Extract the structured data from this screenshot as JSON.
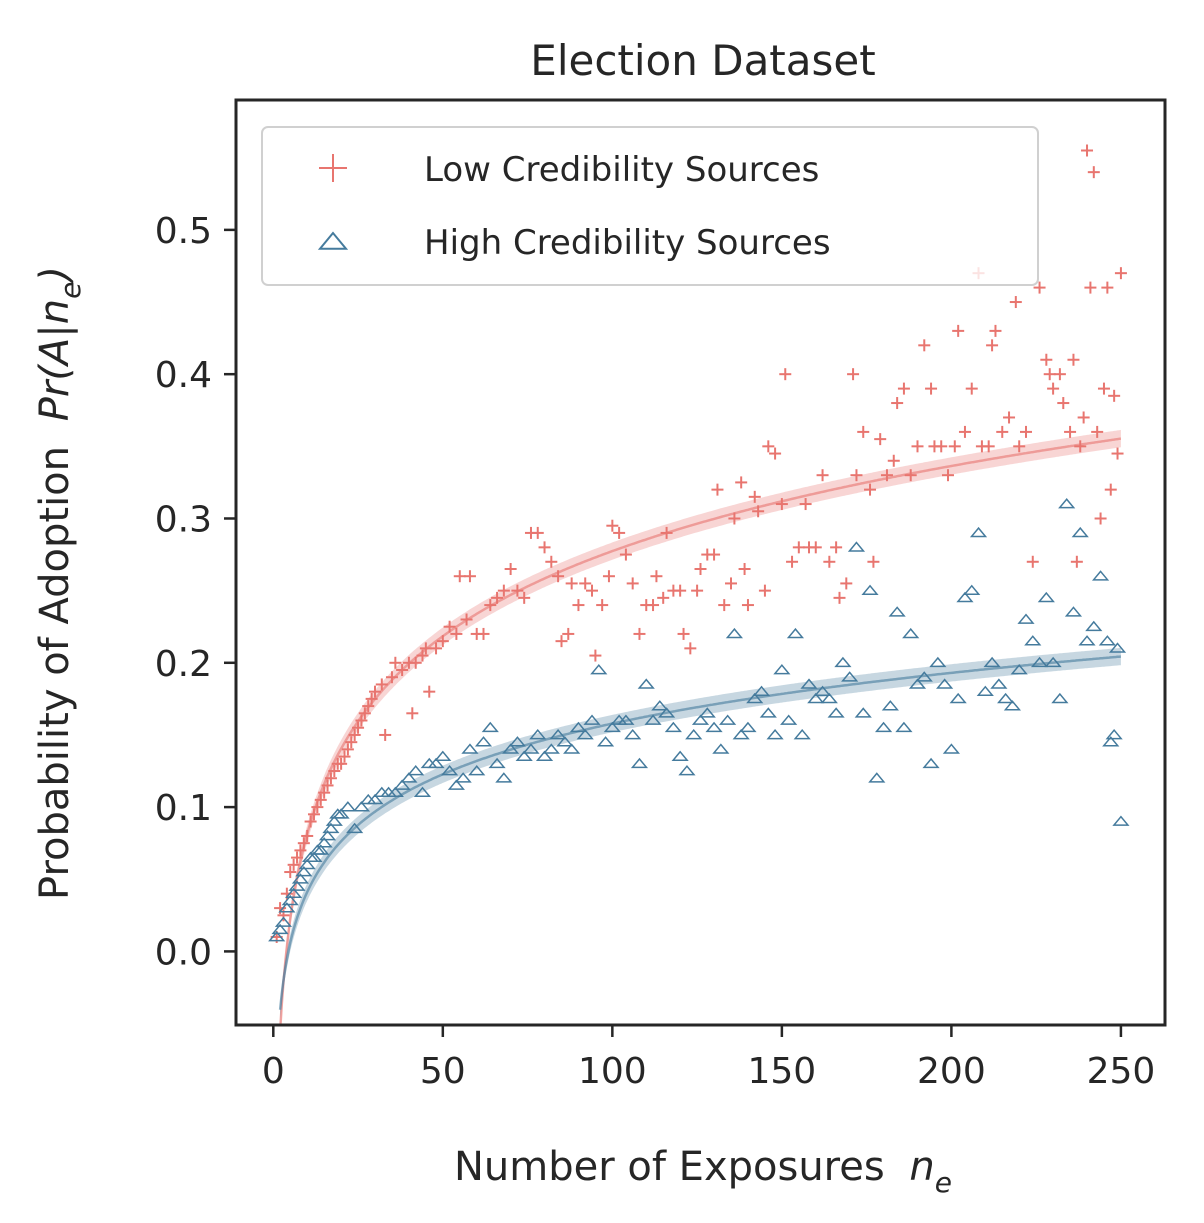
{
  "chart_data": {
    "type": "scatter",
    "title": "Election Dataset",
    "xlabel": "Number of Exposures",
    "xlabel_symbol": "n",
    "xlabel_subscript": "e",
    "ylabel": "Probability of Adoption",
    "ylabel_symbol": "Pr(A|n",
    "ylabel_subscript": "e",
    "ylabel_close": ")",
    "xlim": [
      -11,
      263
    ],
    "ylim": [
      -0.051,
      0.59
    ],
    "xticks": [
      0,
      50,
      100,
      150,
      200,
      250
    ],
    "xtick_labels": [
      "0",
      "50",
      "100",
      "150",
      "200",
      "250"
    ],
    "yticks": [
      0.0,
      0.1,
      0.2,
      0.3,
      0.4,
      0.5
    ],
    "ytick_labels": [
      "0.0",
      "0.1",
      "0.2",
      "0.3",
      "0.4",
      "0.5"
    ],
    "legend_position": "top-left",
    "series": [
      {
        "name": "Low Credibility Sources",
        "marker": "plus",
        "color": "#e8756f",
        "fit": {
          "model": "log",
          "a": -0.1145,
          "b": 0.0851,
          "x_start": 2,
          "x_end": 250
        },
        "points": [
          [
            1,
            0.01
          ],
          [
            2,
            0.03
          ],
          [
            3,
            0.025
          ],
          [
            4,
            0.04
          ],
          [
            5,
            0.055
          ],
          [
            6,
            0.06
          ],
          [
            7,
            0.065
          ],
          [
            8,
            0.07
          ],
          [
            9,
            0.075
          ],
          [
            10,
            0.08
          ],
          [
            11,
            0.09
          ],
          [
            12,
            0.095
          ],
          [
            13,
            0.1
          ],
          [
            14,
            0.105
          ],
          [
            15,
            0.11
          ],
          [
            16,
            0.115
          ],
          [
            17,
            0.12
          ],
          [
            18,
            0.125
          ],
          [
            19,
            0.13
          ],
          [
            20,
            0.13
          ],
          [
            21,
            0.135
          ],
          [
            22,
            0.14
          ],
          [
            23,
            0.145
          ],
          [
            24,
            0.15
          ],
          [
            25,
            0.155
          ],
          [
            26,
            0.16
          ],
          [
            27,
            0.165
          ],
          [
            28,
            0.17
          ],
          [
            29,
            0.175
          ],
          [
            30,
            0.18
          ],
          [
            32,
            0.185
          ],
          [
            33,
            0.15
          ],
          [
            35,
            0.19
          ],
          [
            36,
            0.2
          ],
          [
            38,
            0.195
          ],
          [
            40,
            0.2
          ],
          [
            41,
            0.165
          ],
          [
            42,
            0.2
          ],
          [
            44,
            0.205
          ],
          [
            45,
            0.21
          ],
          [
            46,
            0.18
          ],
          [
            48,
            0.21
          ],
          [
            50,
            0.215
          ],
          [
            52,
            0.225
          ],
          [
            54,
            0.22
          ],
          [
            55,
            0.26
          ],
          [
            57,
            0.23
          ],
          [
            58,
            0.26
          ],
          [
            60,
            0.22
          ],
          [
            62,
            0.22
          ],
          [
            64,
            0.24
          ],
          [
            66,
            0.245
          ],
          [
            68,
            0.25
          ],
          [
            70,
            0.265
          ],
          [
            72,
            0.25
          ],
          [
            74,
            0.245
          ],
          [
            76,
            0.29
          ],
          [
            78,
            0.29
          ],
          [
            80,
            0.28
          ],
          [
            82,
            0.27
          ],
          [
            84,
            0.26
          ],
          [
            85,
            0.215
          ],
          [
            87,
            0.22
          ],
          [
            88,
            0.255
          ],
          [
            90,
            0.24
          ],
          [
            92,
            0.255
          ],
          [
            94,
            0.25
          ],
          [
            95,
            0.205
          ],
          [
            97,
            0.24
          ],
          [
            99,
            0.26
          ],
          [
            100,
            0.295
          ],
          [
            102,
            0.29
          ],
          [
            104,
            0.275
          ],
          [
            106,
            0.255
          ],
          [
            108,
            0.22
          ],
          [
            110,
            0.24
          ],
          [
            112,
            0.24
          ],
          [
            113,
            0.26
          ],
          [
            115,
            0.245
          ],
          [
            116,
            0.29
          ],
          [
            118,
            0.25
          ],
          [
            120,
            0.25
          ],
          [
            121,
            0.22
          ],
          [
            123,
            0.21
          ],
          [
            125,
            0.25
          ],
          [
            126,
            0.265
          ],
          [
            128,
            0.275
          ],
          [
            130,
            0.275
          ],
          [
            131,
            0.32
          ],
          [
            133,
            0.24
          ],
          [
            135,
            0.255
          ],
          [
            136,
            0.3
          ],
          [
            138,
            0.325
          ],
          [
            139,
            0.265
          ],
          [
            140,
            0.24
          ],
          [
            142,
            0.315
          ],
          [
            143,
            0.305
          ],
          [
            145,
            0.25
          ],
          [
            146,
            0.35
          ],
          [
            148,
            0.345
          ],
          [
            150,
            0.31
          ],
          [
            151,
            0.4
          ],
          [
            153,
            0.27
          ],
          [
            155,
            0.28
          ],
          [
            157,
            0.31
          ],
          [
            158,
            0.28
          ],
          [
            160,
            0.28
          ],
          [
            162,
            0.33
          ],
          [
            164,
            0.27
          ],
          [
            166,
            0.28
          ],
          [
            167,
            0.245
          ],
          [
            169,
            0.255
          ],
          [
            171,
            0.4
          ],
          [
            172,
            0.33
          ],
          [
            174,
            0.36
          ],
          [
            176,
            0.32
          ],
          [
            177,
            0.27
          ],
          [
            179,
            0.355
          ],
          [
            181,
            0.33
          ],
          [
            183,
            0.34
          ],
          [
            184,
            0.38
          ],
          [
            186,
            0.39
          ],
          [
            188,
            0.33
          ],
          [
            190,
            0.35
          ],
          [
            192,
            0.42
          ],
          [
            194,
            0.39
          ],
          [
            195,
            0.35
          ],
          [
            197,
            0.35
          ],
          [
            199,
            0.33
          ],
          [
            201,
            0.35
          ],
          [
            202,
            0.43
          ],
          [
            204,
            0.36
          ],
          [
            206,
            0.39
          ],
          [
            208,
            0.47
          ],
          [
            209,
            0.35
          ],
          [
            211,
            0.35
          ],
          [
            212,
            0.42
          ],
          [
            213,
            0.43
          ],
          [
            215,
            0.36
          ],
          [
            217,
            0.37
          ],
          [
            219,
            0.45
          ],
          [
            220,
            0.35
          ],
          [
            222,
            0.36
          ],
          [
            224,
            0.27
          ],
          [
            226,
            0.46
          ],
          [
            228,
            0.41
          ],
          [
            229,
            0.4
          ],
          [
            230,
            0.39
          ],
          [
            232,
            0.4
          ],
          [
            233,
            0.38
          ],
          [
            235,
            0.36
          ],
          [
            236,
            0.41
          ],
          [
            237,
            0.27
          ],
          [
            238,
            0.35
          ],
          [
            239,
            0.37
          ],
          [
            240,
            0.555
          ],
          [
            241,
            0.46
          ],
          [
            242,
            0.54
          ],
          [
            243,
            0.36
          ],
          [
            244,
            0.3
          ],
          [
            245,
            0.39
          ],
          [
            246,
            0.46
          ],
          [
            247,
            0.32
          ],
          [
            248,
            0.385
          ],
          [
            249,
            0.345
          ],
          [
            250,
            0.47
          ]
        ]
      },
      {
        "name": "High Credibility Sources",
        "marker": "triangle",
        "color": "#457b9d",
        "fit": {
          "model": "log",
          "a": -0.0756,
          "b": 0.0507,
          "x_start": 2,
          "x_end": 250
        },
        "points": [
          [
            1,
            0.01
          ],
          [
            2,
            0.015
          ],
          [
            3,
            0.02
          ],
          [
            4,
            0.03
          ],
          [
            5,
            0.035
          ],
          [
            6,
            0.04
          ],
          [
            7,
            0.045
          ],
          [
            8,
            0.05
          ],
          [
            9,
            0.055
          ],
          [
            10,
            0.06
          ],
          [
            11,
            0.065
          ],
          [
            12,
            0.065
          ],
          [
            13,
            0.07
          ],
          [
            14,
            0.07
          ],
          [
            15,
            0.075
          ],
          [
            16,
            0.08
          ],
          [
            17,
            0.085
          ],
          [
            18,
            0.09
          ],
          [
            19,
            0.095
          ],
          [
            20,
            0.095
          ],
          [
            22,
            0.1
          ],
          [
            24,
            0.085
          ],
          [
            26,
            0.1
          ],
          [
            28,
            0.105
          ],
          [
            30,
            0.105
          ],
          [
            32,
            0.11
          ],
          [
            34,
            0.11
          ],
          [
            36,
            0.11
          ],
          [
            38,
            0.115
          ],
          [
            40,
            0.12
          ],
          [
            42,
            0.125
          ],
          [
            44,
            0.11
          ],
          [
            46,
            0.13
          ],
          [
            48,
            0.13
          ],
          [
            50,
            0.135
          ],
          [
            52,
            0.125
          ],
          [
            54,
            0.115
          ],
          [
            56,
            0.12
          ],
          [
            58,
            0.14
          ],
          [
            60,
            0.125
          ],
          [
            62,
            0.145
          ],
          [
            64,
            0.155
          ],
          [
            66,
            0.13
          ],
          [
            68,
            0.12
          ],
          [
            70,
            0.14
          ],
          [
            72,
            0.145
          ],
          [
            74,
            0.135
          ],
          [
            76,
            0.14
          ],
          [
            78,
            0.15
          ],
          [
            80,
            0.135
          ],
          [
            82,
            0.14
          ],
          [
            84,
            0.15
          ],
          [
            86,
            0.145
          ],
          [
            88,
            0.14
          ],
          [
            90,
            0.155
          ],
          [
            92,
            0.15
          ],
          [
            94,
            0.16
          ],
          [
            96,
            0.195
          ],
          [
            98,
            0.145
          ],
          [
            100,
            0.155
          ],
          [
            102,
            0.16
          ],
          [
            104,
            0.16
          ],
          [
            106,
            0.15
          ],
          [
            108,
            0.13
          ],
          [
            110,
            0.185
          ],
          [
            112,
            0.16
          ],
          [
            114,
            0.17
          ],
          [
            116,
            0.165
          ],
          [
            118,
            0.155
          ],
          [
            120,
            0.135
          ],
          [
            122,
            0.125
          ],
          [
            124,
            0.15
          ],
          [
            126,
            0.16
          ],
          [
            128,
            0.165
          ],
          [
            130,
            0.155
          ],
          [
            132,
            0.14
          ],
          [
            134,
            0.16
          ],
          [
            136,
            0.22
          ],
          [
            138,
            0.15
          ],
          [
            140,
            0.155
          ],
          [
            142,
            0.175
          ],
          [
            144,
            0.18
          ],
          [
            146,
            0.165
          ],
          [
            148,
            0.15
          ],
          [
            150,
            0.195
          ],
          [
            152,
            0.16
          ],
          [
            154,
            0.22
          ],
          [
            156,
            0.15
          ],
          [
            158,
            0.185
          ],
          [
            160,
            0.175
          ],
          [
            162,
            0.18
          ],
          [
            164,
            0.175
          ],
          [
            166,
            0.165
          ],
          [
            168,
            0.2
          ],
          [
            170,
            0.19
          ],
          [
            172,
            0.28
          ],
          [
            174,
            0.165
          ],
          [
            176,
            0.25
          ],
          [
            178,
            0.12
          ],
          [
            180,
            0.155
          ],
          [
            182,
            0.17
          ],
          [
            184,
            0.235
          ],
          [
            186,
            0.155
          ],
          [
            188,
            0.22
          ],
          [
            190,
            0.185
          ],
          [
            192,
            0.19
          ],
          [
            194,
            0.13
          ],
          [
            196,
            0.2
          ],
          [
            198,
            0.185
          ],
          [
            200,
            0.14
          ],
          [
            202,
            0.175
          ],
          [
            204,
            0.245
          ],
          [
            206,
            0.25
          ],
          [
            208,
            0.29
          ],
          [
            210,
            0.18
          ],
          [
            212,
            0.2
          ],
          [
            214,
            0.185
          ],
          [
            216,
            0.175
          ],
          [
            218,
            0.17
          ],
          [
            220,
            0.195
          ],
          [
            222,
            0.23
          ],
          [
            224,
            0.215
          ],
          [
            226,
            0.2
          ],
          [
            228,
            0.245
          ],
          [
            230,
            0.2
          ],
          [
            232,
            0.175
          ],
          [
            234,
            0.31
          ],
          [
            236,
            0.235
          ],
          [
            238,
            0.29
          ],
          [
            240,
            0.215
          ],
          [
            242,
            0.225
          ],
          [
            244,
            0.26
          ],
          [
            246,
            0.215
          ],
          [
            247,
            0.145
          ],
          [
            248,
            0.15
          ],
          [
            249,
            0.21
          ],
          [
            250,
            0.09
          ]
        ]
      }
    ]
  }
}
